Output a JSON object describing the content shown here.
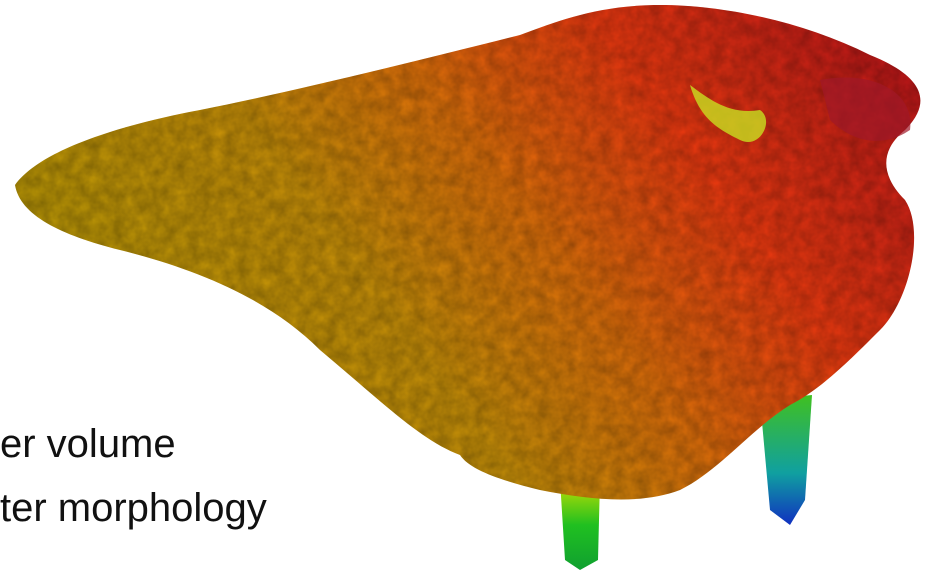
{
  "bullets": [
    "er volume",
    "ter morphology"
  ]
}
